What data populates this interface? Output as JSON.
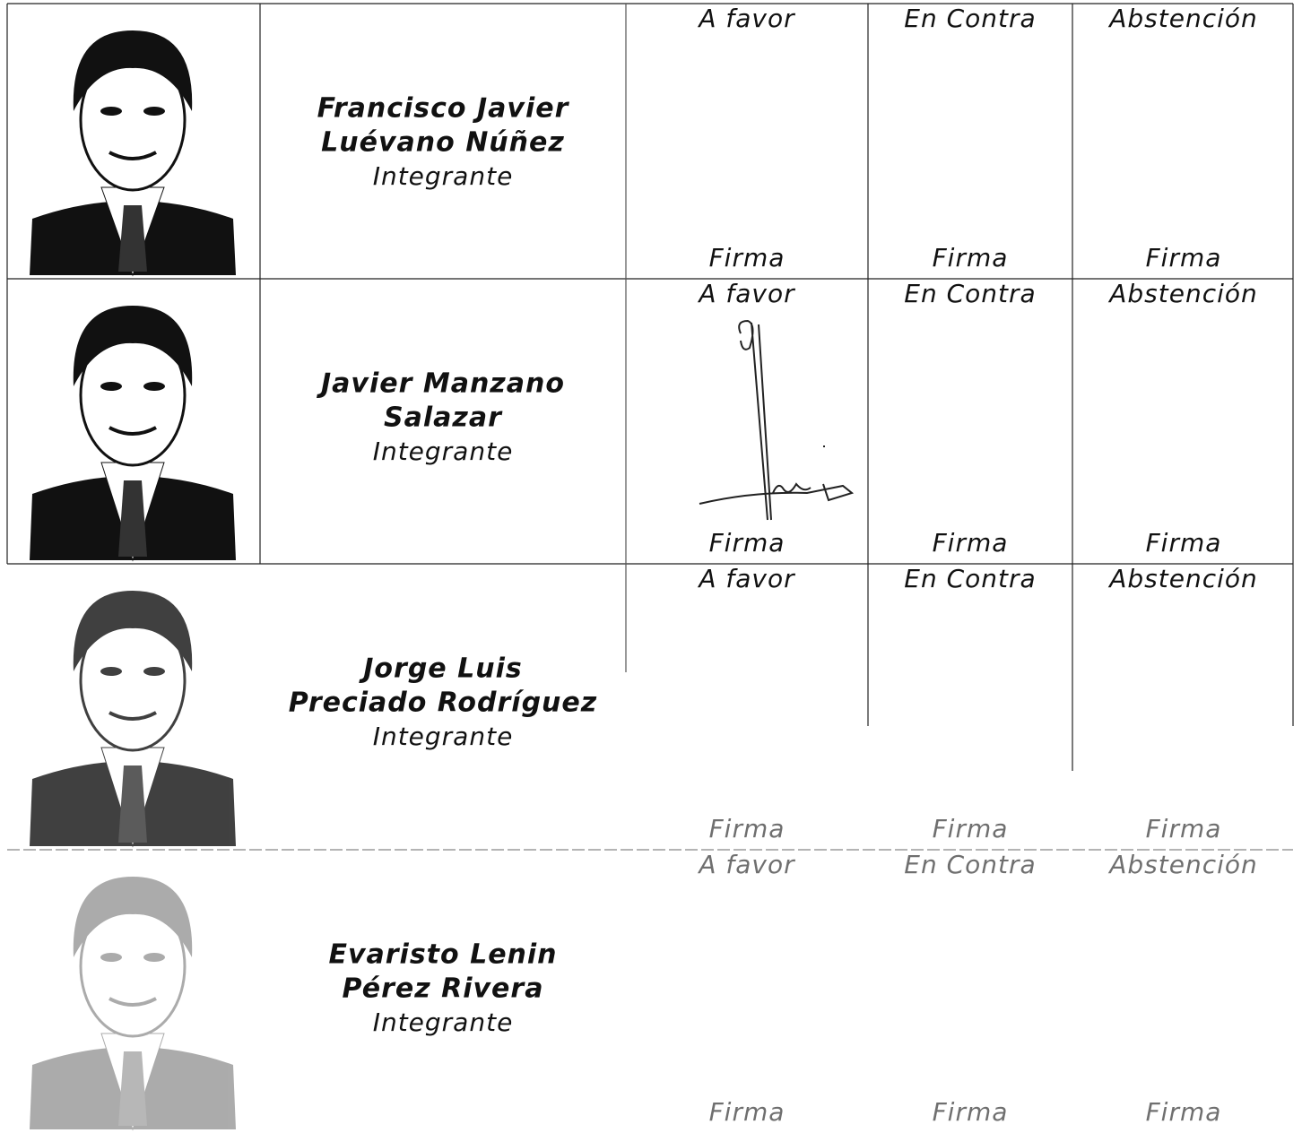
{
  "rows": [
    {
      "name": [
        "Francisco Javier",
        "Luévano Núñez"
      ],
      "role": "Integrante",
      "votes": [
        {
          "label": "A favor",
          "sign": "Firma"
        },
        {
          "label": "En Contra",
          "sign": "Firma"
        },
        {
          "label": "Abstención",
          "sign": "Firma"
        }
      ]
    },
    {
      "name": [
        "Javier Manzano",
        "Salazar"
      ],
      "role": "Integrante",
      "votes": [
        {
          "label": "A favor",
          "sign": "Firma"
        },
        {
          "label": "En Contra",
          "sign": "Firma"
        },
        {
          "label": "Abstención",
          "sign": "Firma"
        }
      ]
    },
    {
      "name": [
        "Jorge Luis",
        "Preciado Rodríguez"
      ],
      "role": "Integrante",
      "votes": [
        {
          "label": "A favor",
          "sign": "Firma"
        },
        {
          "label": "En Contra",
          "sign": "Firma"
        },
        {
          "label": "Abstención",
          "sign": "Firma"
        }
      ]
    },
    {
      "name": [
        "Evaristo Lenin",
        "Pérez Rivera"
      ],
      "role": "Integrante",
      "votes": [
        {
          "label": "A favor",
          "sign": "Firma"
        },
        {
          "label": "En Contra",
          "sign": "Firma"
        },
        {
          "label": "Abstención",
          "sign": "Firma"
        }
      ]
    }
  ]
}
